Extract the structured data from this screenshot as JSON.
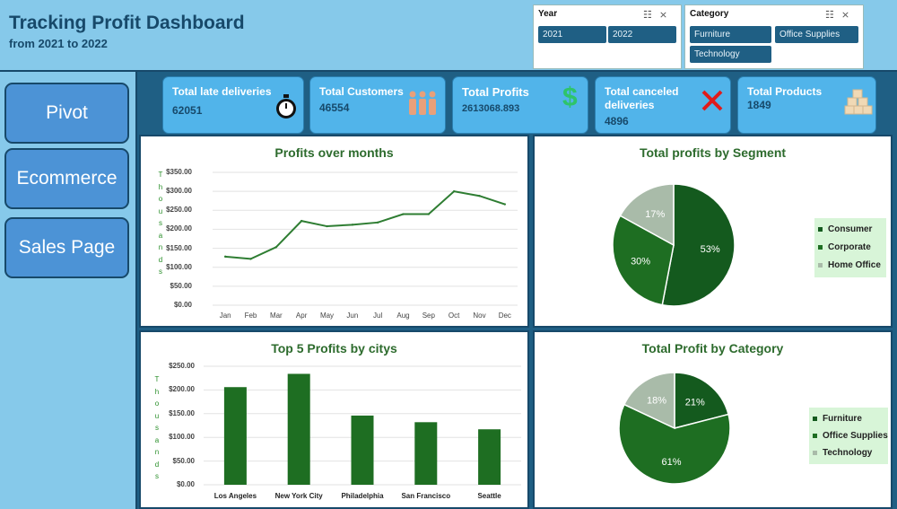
{
  "header": {
    "title": "Tracking Profit Dashboard",
    "subtitle": "from 2021 to 2022"
  },
  "slicers": {
    "year": {
      "label": "Year",
      "options": [
        "2021",
        "2022"
      ]
    },
    "category": {
      "label": "Category",
      "options": [
        "Furniture",
        "Office Supplies",
        "Technology"
      ]
    },
    "icons": [
      "multi-select-icon",
      "clear-filter-icon"
    ]
  },
  "nav": {
    "items": [
      "Pivot",
      "Ecommerce",
      "Sales Page"
    ]
  },
  "kpis": [
    {
      "label": "Total late deliveries",
      "value": "62051",
      "icon": "stopwatch-icon"
    },
    {
      "label": "Total Customers",
      "value": "46554",
      "icon": "people-icon"
    },
    {
      "label": "Total Profits",
      "value": "2613068.893",
      "icon": "dollar-icon"
    },
    {
      "label": "Total canceled deliveries",
      "value": "4896",
      "icon": "cross-icon"
    },
    {
      "label": "Total Products",
      "value": "1849",
      "icon": "boxes-icon"
    }
  ],
  "colors": {
    "accent": "#1f5f84",
    "header": "#86c9ea",
    "kpi": "#51b4ea",
    "green_dark": "#145a1e",
    "green_mid": "#1e6e22",
    "green_grey": "#a9bba9"
  },
  "chart_data": [
    {
      "type": "line",
      "title": "Profits over months",
      "vertical_label": "Thousands",
      "categories": [
        "Jan",
        "Feb",
        "Mar",
        "Apr",
        "May",
        "Jun",
        "Jul",
        "Aug",
        "Sep",
        "Oct",
        "Nov",
        "Dec"
      ],
      "values": [
        128,
        122,
        153,
        222,
        208,
        212,
        218,
        240,
        240,
        300,
        288,
        266
      ],
      "yticks": [
        "$350.00",
        "$300.00",
        "$250.00",
        "$200.00",
        "$150.00",
        "$100.00",
        "$50.00",
        "$0.00"
      ],
      "ylim": [
        0,
        350
      ],
      "grid": true
    },
    {
      "type": "pie",
      "title": "Total profits by Segment",
      "slices": [
        {
          "name": "Consumer",
          "value": 53,
          "label": "53%",
          "color": "#145a1e"
        },
        {
          "name": "Corporate",
          "value": 30,
          "label": "30%",
          "color": "#1e6e22"
        },
        {
          "name": "Home Office",
          "value": 17,
          "label": "17%",
          "color": "#a9bba9"
        }
      ],
      "legend": "right"
    },
    {
      "type": "bar",
      "title": "Top 5 Profits by citys",
      "vertical_label": "Thousands",
      "categories": [
        "Los Angeles",
        "New York City",
        "Philadelphia",
        "San Francisco",
        "Seattle"
      ],
      "values": [
        206,
        234,
        146,
        132,
        117
      ],
      "yticks": [
        "$250.00",
        "$200.00",
        "$150.00",
        "$100.00",
        "$50.00",
        "$0.00"
      ],
      "ylim": [
        0,
        250
      ],
      "grid": true
    },
    {
      "type": "pie",
      "title": "Total Profit by Category",
      "slices": [
        {
          "name": "Furniture",
          "value": 21,
          "label": "21%",
          "color": "#145a1e"
        },
        {
          "name": "Office Supplies",
          "value": 61,
          "label": "61%",
          "color": "#1e6e22"
        },
        {
          "name": "Technology",
          "value": 18,
          "label": "18%",
          "color": "#a9bba9"
        }
      ],
      "legend": "right"
    }
  ]
}
